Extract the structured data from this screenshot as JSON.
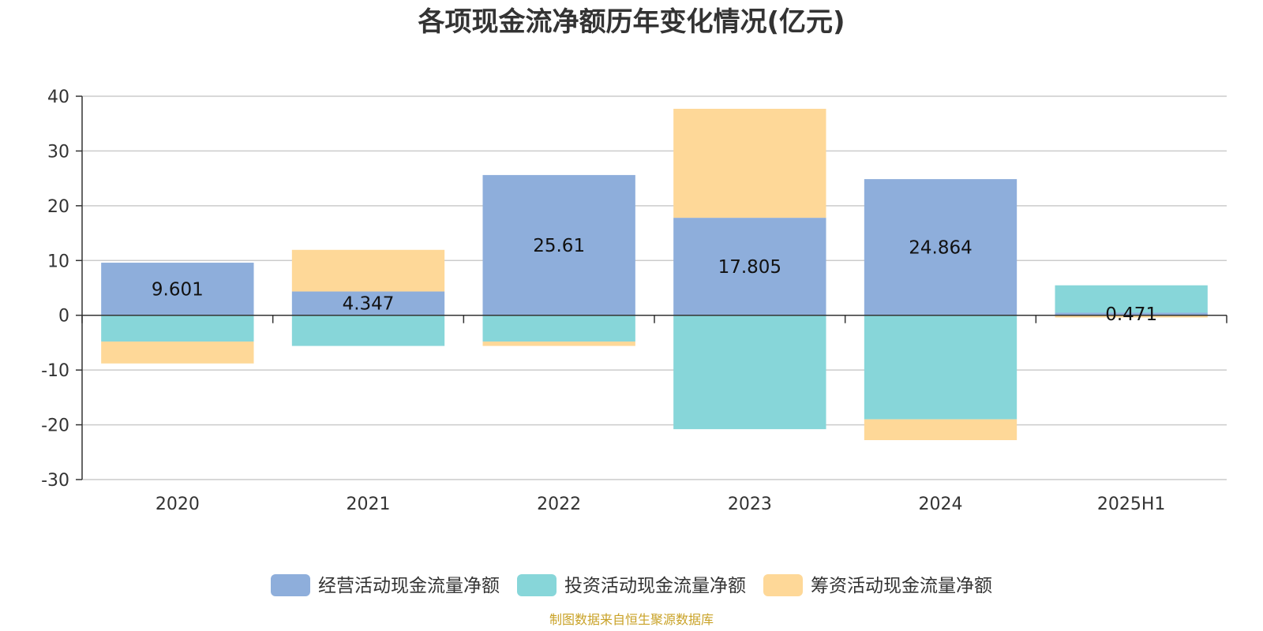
{
  "title": "各项现金流净额历年变化情况(亿元)",
  "source_note": "制图数据来自恒生聚源数据库",
  "colors": {
    "operating": "#8eaedb",
    "investing": "#87d6d9",
    "financing": "#fed898"
  },
  "chart_data": {
    "type": "bar",
    "stacked": true,
    "title": "各项现金流净额历年变化情况(亿元)",
    "categories": [
      "2020",
      "2021",
      "2022",
      "2023",
      "2024",
      "2025H1"
    ],
    "ylim": [
      -30,
      40
    ],
    "yticks": [
      -30,
      -20,
      -10,
      0,
      10,
      20,
      30,
      40
    ],
    "grid": true,
    "legend_position": "bottom-center",
    "series": [
      {
        "name": "经营活动现金流量净额",
        "values": [
          9.601,
          4.347,
          25.61,
          17.805,
          24.864,
          0.471
        ],
        "data_labels": [
          "9.601",
          "4.347",
          "25.61",
          "17.805",
          "24.864",
          "0.471"
        ]
      },
      {
        "name": "投资活动现金流量净额",
        "values": [
          -4.8,
          -5.6,
          -4.8,
          -20.8,
          -19.0,
          5.0
        ]
      },
      {
        "name": "筹资活动现金流量净额",
        "values": [
          -4.0,
          7.6,
          -0.8,
          19.9,
          -3.8,
          -0.4
        ]
      }
    ]
  }
}
